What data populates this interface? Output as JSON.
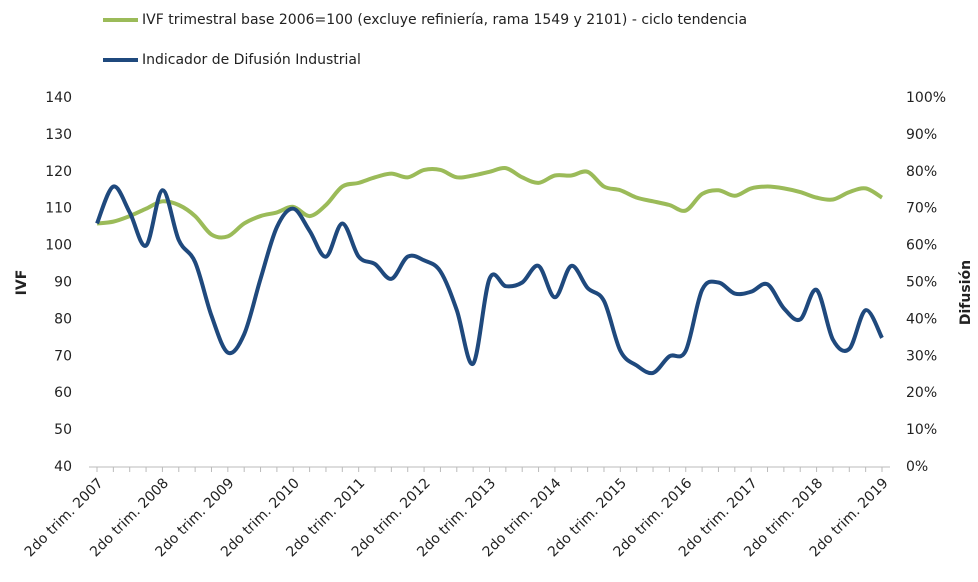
{
  "chart_data": {
    "type": "line",
    "categories": [
      "2do trim. 2007",
      null,
      null,
      null,
      "2do trim. 2008",
      null,
      null,
      null,
      "2do trim. 2009",
      null,
      null,
      null,
      "2do trim. 2010",
      null,
      null,
      null,
      "2do trim. 2011",
      null,
      null,
      null,
      "2do trim. 2012",
      null,
      null,
      null,
      "2do trim. 2013",
      null,
      null,
      null,
      "2do trim. 2014",
      null,
      null,
      null,
      "2do trim. 2015",
      null,
      null,
      null,
      "2do trim. 2016",
      null,
      null,
      null,
      "2do trim. 2017",
      null,
      null,
      null,
      "2do trim. 2018",
      null,
      null,
      null,
      "2do trim. 2019"
    ],
    "series": [
      {
        "name": "IVF trimestral base 2006=100 (excluye refiniería, rama 1549 y 2101) - ciclo tendencia",
        "color": "#9bbb59",
        "values": [
          106,
          106.5,
          108,
          110,
          112,
          111,
          108,
          103,
          102.5,
          106,
          108,
          109,
          110.5,
          108,
          111,
          116,
          117,
          118.5,
          119.5,
          118.5,
          120.5,
          120.5,
          118.5,
          119,
          120,
          121,
          118.5,
          117,
          119,
          119,
          120,
          116,
          115,
          113,
          112,
          111,
          109.5,
          114,
          115,
          113.5,
          115.5,
          116,
          115.5,
          114.5,
          113,
          112.5,
          114.5,
          115.5,
          113
        ]
      },
      {
        "name": "Indicador de Difusión Industrial",
        "color": "#1f497d",
        "axis": "y2",
        "values": [
          66,
          76,
          69,
          60,
          75,
          61.5,
          55.5,
          41,
          31,
          36,
          51,
          65,
          70,
          64,
          57,
          66,
          57,
          55,
          51,
          57,
          56,
          53,
          42.5,
          28,
          51,
          49,
          50,
          54.5,
          46,
          54.5,
          48.5,
          45,
          31.5,
          27.5,
          25.5,
          30,
          31.5,
          48,
          50,
          47,
          47.5,
          49.5,
          43,
          40,
          48,
          34.5,
          32,
          42.5,
          35
        ]
      }
    ],
    "ylabel": "IVF",
    "y2label": "Difusión",
    "ylim": [
      40,
      140
    ],
    "yticks": [
      40,
      50,
      60,
      70,
      80,
      90,
      100,
      110,
      120,
      130,
      140
    ],
    "y2lim": [
      0,
      100
    ],
    "y2ticks": [
      {
        "value": 0,
        "label": "0%"
      },
      {
        "value": 10,
        "label": "10%"
      },
      {
        "value": 20,
        "label": "20%"
      },
      {
        "value": 30,
        "label": "30%"
      },
      {
        "value": 40,
        "label": "40%"
      },
      {
        "value": 50,
        "label": "50%"
      },
      {
        "value": 60,
        "label": "60%"
      },
      {
        "value": 70,
        "label": "70%"
      },
      {
        "value": 80,
        "label": "80%"
      },
      {
        "value": 90,
        "label": "90%"
      },
      {
        "value": 100,
        "label": "100%"
      }
    ],
    "legend": "top",
    "grid": false
  }
}
